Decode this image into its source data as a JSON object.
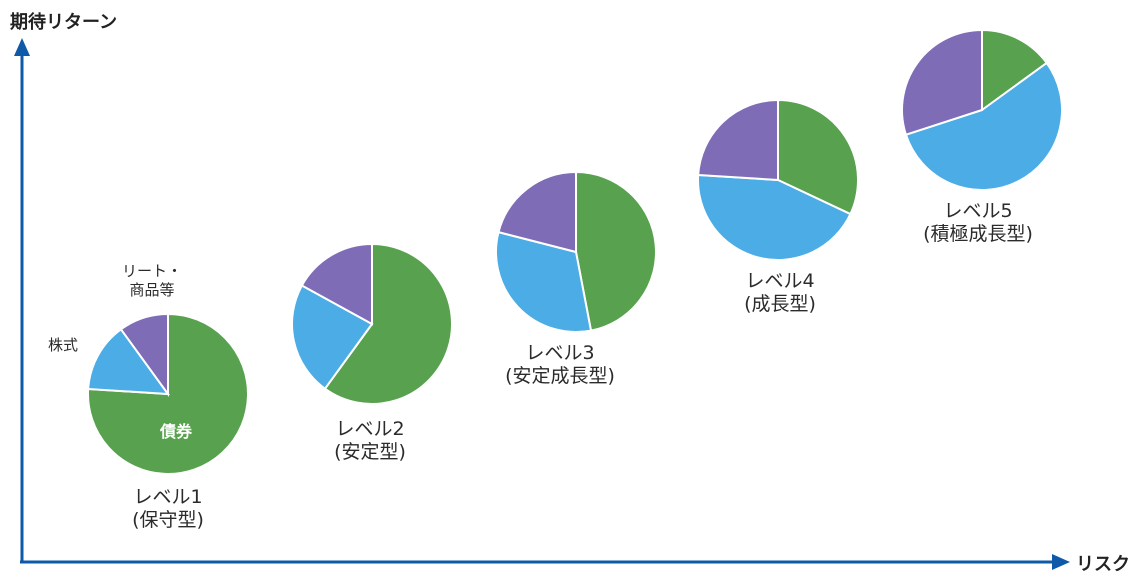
{
  "axes": {
    "y_label": "期待リターン",
    "x_label": "リスク",
    "color": "#0f5aa8"
  },
  "colors": {
    "債券": "#58a14e",
    "株式": "#4bace6",
    "リート・商品等": "#7f6cb6"
  },
  "annotations": {
    "stocks": "株式",
    "reit_line1": "リート・",
    "reit_line2": "商品等",
    "bonds": "債券"
  },
  "chart_data": [
    {
      "type": "pie",
      "name": "レベル1",
      "subtitle": "(保守型)",
      "slices": [
        {
          "category": "債券",
          "value": 76
        },
        {
          "category": "株式",
          "value": 14
        },
        {
          "category": "リート・商品等",
          "value": 10
        }
      ]
    },
    {
      "type": "pie",
      "name": "レベル2",
      "subtitle": "(安定型)",
      "slices": [
        {
          "category": "債券",
          "value": 60
        },
        {
          "category": "株式",
          "value": 23
        },
        {
          "category": "リート・商品等",
          "value": 17
        }
      ]
    },
    {
      "type": "pie",
      "name": "レベル3",
      "subtitle": "(安定成長型)",
      "slices": [
        {
          "category": "債券",
          "value": 47
        },
        {
          "category": "株式",
          "value": 32
        },
        {
          "category": "リート・商品等",
          "value": 21
        }
      ]
    },
    {
      "type": "pie",
      "name": "レベル4",
      "subtitle": "(成長型)",
      "slices": [
        {
          "category": "債券",
          "value": 32
        },
        {
          "category": "株式",
          "value": 44
        },
        {
          "category": "リート・商品等",
          "value": 24
        }
      ]
    },
    {
      "type": "pie",
      "name": "レベル5",
      "subtitle": "(積極成長型)",
      "slices": [
        {
          "category": "債券",
          "value": 15
        },
        {
          "category": "株式",
          "value": 55
        },
        {
          "category": "リート・商品等",
          "value": 30
        }
      ]
    }
  ]
}
